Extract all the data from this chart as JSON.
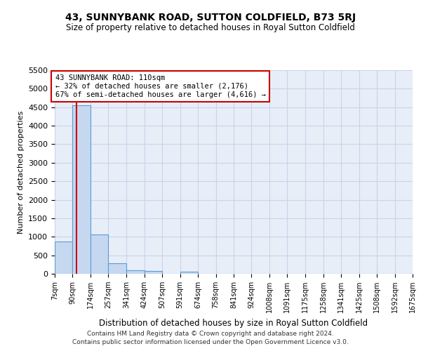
{
  "title": "43, SUNNYBANK ROAD, SUTTON COLDFIELD, B73 5RJ",
  "subtitle": "Size of property relative to detached houses in Royal Sutton Coldfield",
  "xlabel": "Distribution of detached houses by size in Royal Sutton Coldfield",
  "ylabel": "Number of detached properties",
  "footnote1": "Contains HM Land Registry data © Crown copyright and database right 2024.",
  "footnote2": "Contains public sector information licensed under the Open Government Licence v3.0.",
  "bin_edges": [
    7,
    90,
    174,
    257,
    341,
    424,
    507,
    591,
    674,
    758,
    841,
    924,
    1008,
    1091,
    1175,
    1258,
    1341,
    1425,
    1508,
    1592,
    1675
  ],
  "bar_heights": [
    880,
    4550,
    1060,
    280,
    90,
    85,
    0,
    65,
    0,
    0,
    0,
    0,
    0,
    0,
    0,
    0,
    0,
    0,
    0,
    0
  ],
  "bar_color": "#c5d8f0",
  "bar_edge_color": "#5b9bd5",
  "property_size": 110,
  "annotation_text": "43 SUNNYBANK ROAD: 110sqm\n← 32% of detached houses are smaller (2,176)\n67% of semi-detached houses are larger (4,616) →",
  "annotation_box_color": "#ffffff",
  "annotation_box_edge": "#cc0000",
  "red_line_color": "#cc0000",
  "ylim": [
    0,
    5500
  ],
  "yticks": [
    0,
    500,
    1000,
    1500,
    2000,
    2500,
    3000,
    3500,
    4000,
    4500,
    5000,
    5500
  ],
  "grid_color": "#c8d4e8",
  "bg_color": "#e8eef8"
}
